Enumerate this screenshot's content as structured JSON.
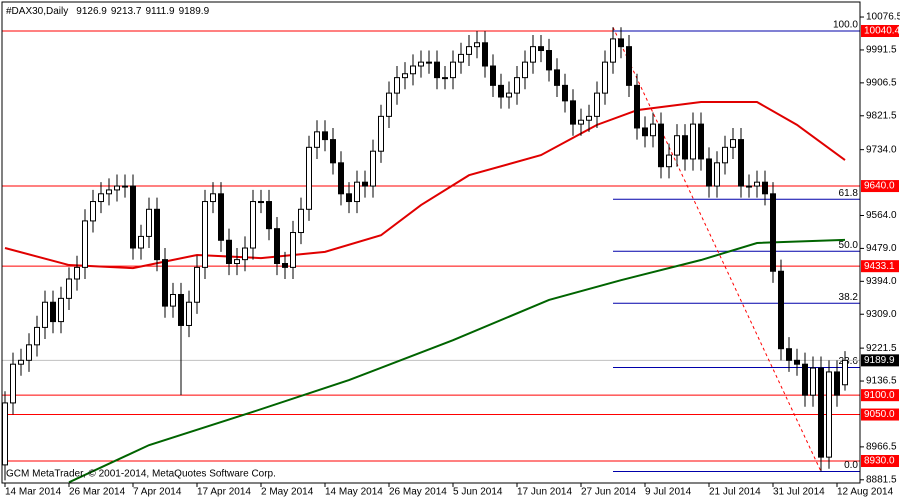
{
  "chart_data": {
    "type": "candlestick",
    "title": "#DAX30,Daily",
    "footer": "GCM MetaTrader, © 2001-2014, MetaQuotes Software Corp.",
    "xlim": [
      -0.375,
      106.875
    ],
    "ylim": [
      8873.2,
      10115.3
    ],
    "up_color": "#ffffff",
    "down_color": "#000000",
    "open": [
      8920,
      9080,
      9180,
      9190,
      9230,
      9275,
      9340,
      9290,
      9350,
      9400,
      9430,
      9550,
      9600,
      9620,
      9630,
      9640,
      9640,
      9480,
      9510,
      9580,
      9450,
      9330,
      9360,
      9280,
      9340,
      9430,
      9600,
      9620,
      9500,
      9440,
      9450,
      9480,
      9600,
      9600,
      9530,
      9440,
      9430,
      9520,
      9580,
      9740,
      9780,
      9760,
      9700,
      9620,
      9600,
      9650,
      9640,
      9730,
      9820,
      9880,
      9920,
      9930,
      9950,
      9960,
      9960,
      9920,
      9920,
      9960,
      9980,
      10000,
      10010,
      9950,
      9900,
      9870,
      9880,
      9920,
      9960,
      10000,
      9990,
      9940,
      9900,
      9860,
      9800,
      9810,
      9820,
      9880,
      9960,
      10020,
      10000,
      9900,
      9790,
      9770,
      9800,
      9690,
      9720,
      9770,
      9710,
      9800,
      9710,
      9640,
      9700,
      9740,
      9760,
      9640,
      9640,
      9650,
      9620,
      9420,
      9220,
      9190,
      9180,
      9100,
      9170,
      8940,
      9160,
      9126.9
    ],
    "high": [
      9110,
      9210,
      9220,
      9260,
      9305,
      9370,
      9370,
      9380,
      9430,
      9460,
      9580,
      9630,
      9650,
      9660,
      9670,
      9670,
      9670,
      9540,
      9610,
      9610,
      9480,
      9390,
      9390,
      9370,
      9460,
      9630,
      9650,
      9650,
      9530,
      9480,
      9510,
      9630,
      9630,
      9630,
      9560,
      9470,
      9550,
      9610,
      9770,
      9810,
      9810,
      9790,
      9730,
      9650,
      9680,
      9680,
      9760,
      9850,
      9910,
      9950,
      9960,
      9980,
      9990,
      9990,
      9990,
      9950,
      9990,
      10010,
      10030,
      10040,
      10040,
      9980,
      9930,
      9910,
      9950,
      9990,
      10030,
      10030,
      10020,
      9970,
      9930,
      9890,
      9840,
      9850,
      9910,
      9990,
      10050,
      10050,
      10030,
      9930,
      9820,
      9830,
      9830,
      9750,
      9800,
      9800,
      9830,
      9830,
      9740,
      9730,
      9770,
      9790,
      9790,
      9670,
      9680,
      9680,
      9650,
      9450,
      9250,
      9220,
      9210,
      9200,
      9200,
      9190,
      9190,
      9213.7
    ],
    "low": [
      8880,
      9050,
      9150,
      9160,
      9200,
      9245,
      9260,
      9260,
      9320,
      9370,
      9400,
      9520,
      9570,
      9590,
      9600,
      9610,
      9450,
      9450,
      9480,
      9420,
      9300,
      9300,
      9100,
      9250,
      9310,
      9400,
      9570,
      9470,
      9410,
      9410,
      9420,
      9450,
      9570,
      9500,
      9410,
      9400,
      9400,
      9490,
      9550,
      9710,
      9730,
      9670,
      9590,
      9570,
      9570,
      9610,
      9610,
      9700,
      9790,
      9850,
      9890,
      9900,
      9920,
      9930,
      9890,
      9890,
      9890,
      9930,
      9950,
      9970,
      9920,
      9870,
      9840,
      9840,
      9850,
      9890,
      9930,
      9960,
      9910,
      9870,
      9830,
      9770,
      9770,
      9780,
      9790,
      9850,
      9930,
      9970,
      9870,
      9760,
      9740,
      9740,
      9660,
      9660,
      9690,
      9680,
      9680,
      9680,
      9610,
      9610,
      9670,
      9710,
      9610,
      9610,
      9610,
      9590,
      9390,
      9190,
      9160,
      9150,
      9070,
      9070,
      8903,
      8910,
      9070,
      9111.9
    ],
    "close": [
      9080,
      9180,
      9190,
      9230,
      9275,
      9340,
      9290,
      9350,
      9400,
      9430,
      9550,
      9600,
      9620,
      9630,
      9640,
      9640,
      9480,
      9510,
      9580,
      9450,
      9330,
      9360,
      9280,
      9340,
      9430,
      9600,
      9620,
      9500,
      9440,
      9450,
      9480,
      9600,
      9600,
      9530,
      9440,
      9430,
      9520,
      9580,
      9740,
      9780,
      9760,
      9700,
      9620,
      9600,
      9650,
      9640,
      9730,
      9820,
      9880,
      9920,
      9930,
      9950,
      9960,
      9960,
      9920,
      9920,
      9960,
      9980,
      10000,
      10010,
      9950,
      9900,
      9870,
      9880,
      9920,
      9960,
      10000,
      9990,
      9940,
      9900,
      9860,
      9800,
      9810,
      9820,
      9880,
      9960,
      10020,
      10000,
      9900,
      9790,
      9770,
      9800,
      9690,
      9720,
      9770,
      9710,
      9800,
      9710,
      9640,
      9700,
      9740,
      9760,
      9640,
      9640,
      9650,
      9620,
      9420,
      9220,
      9190,
      9180,
      9100,
      9170,
      8940,
      9160,
      9100,
      9189.9
    ],
    "moving_averages": [
      {
        "color": "#e00000",
        "x": [
          0,
          8,
          16,
          24,
          32,
          40,
          47,
          52,
          58,
          67,
          74,
          79,
          87,
          94,
          99,
          105
        ],
        "values": [
          9480,
          9436,
          9428,
          9462,
          9454,
          9470,
          9513,
          9591,
          9668,
          9720,
          9798,
          9836,
          9857,
          9857,
          9798,
          9707
        ]
      },
      {
        "color": "#006400",
        "x": [
          8,
          18,
          31,
          43,
          56,
          68,
          77,
          87,
          94,
          105
        ],
        "values": [
          8875,
          8971,
          9057,
          9139,
          9242,
          9346,
          9397,
          9449,
          9493,
          9501
        ]
      }
    ],
    "trendline": {
      "color": "#ff0000",
      "x": [
        76,
        102
      ],
      "values": [
        10050,
        8903
      ]
    },
    "levels": [
      10040.4,
      {
        "value": 9640,
        "label": "9640.0"
      },
      9433.1,
      {
        "value": 9100,
        "label": "9100.0"
      },
      {
        "value": 9050,
        "label": "9050.0"
      },
      {
        "value": 8930,
        "label": "8930.0"
      }
    ],
    "level_color": "#ff0000",
    "fibonacci": {
      "high": 10040.4,
      "low": 8903,
      "x_start": 76,
      "color": "#0000aa",
      "label_color": "#800080",
      "levels": [
        {
          "value": 100,
          "label": "100.0"
        },
        61.8,
        {
          "value": 50,
          "label": "50.0"
        },
        38.2,
        23.6,
        {
          "value": 0,
          "label": "0.0"
        }
      ]
    },
    "yticks": [
      10076.5,
      9991.5,
      9906.5,
      9821.5,
      {
        "value": 9734,
        "label": "9734.0"
      },
      {
        "value": 9564,
        "label": "9564.0"
      },
      {
        "value": 9479,
        "label": "9479.0"
      },
      {
        "value": 9394,
        "label": "9394.0"
      },
      {
        "value": 9309,
        "label": "9309.0"
      },
      9221.5,
      9136.5,
      8966.5,
      8881.5
    ],
    "xticks": [
      {
        "value": 0,
        "label": "14 Mar 2014"
      },
      {
        "value": 8,
        "label": "26 Mar 2014"
      },
      {
        "value": 16,
        "label": "7 Apr 2014"
      },
      {
        "value": 24,
        "label": "17 Apr 2014"
      },
      {
        "value": 32,
        "label": "2 May 2014"
      },
      {
        "value": 40,
        "label": "14 May 2014"
      },
      {
        "value": 48,
        "label": "26 May 2014"
      },
      {
        "value": 56,
        "label": "5 Jun 2014"
      },
      {
        "value": 64,
        "label": "17 Jun 2014"
      },
      {
        "value": 72,
        "label": "27 Jun 2014"
      },
      {
        "value": 80,
        "label": "9 Jul 2014"
      },
      {
        "value": 88,
        "label": "21 Jul 2014"
      },
      {
        "value": 96,
        "label": "31 Jul 2014"
      },
      {
        "value": 104,
        "label": "12 Aug 2014"
      }
    ]
  }
}
